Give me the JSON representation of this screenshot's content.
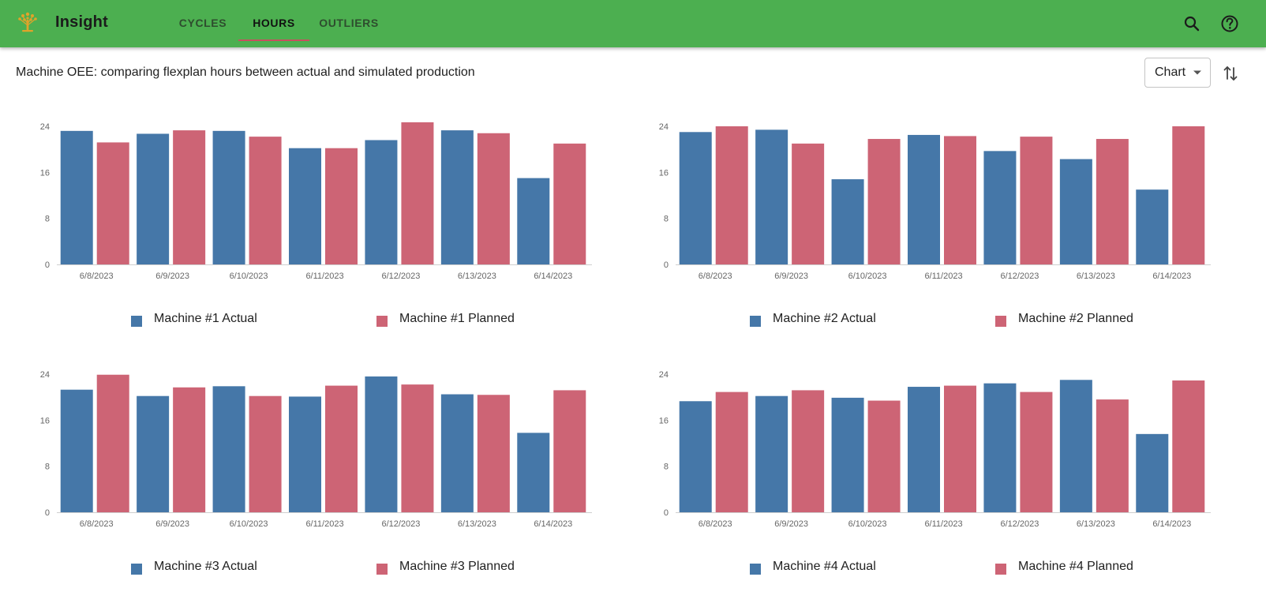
{
  "app": {
    "title": "Insight"
  },
  "nav": {
    "tabs": [
      {
        "label": "CYCLES",
        "active": false
      },
      {
        "label": "HOURS",
        "active": true
      },
      {
        "label": "OUTLIERS",
        "active": false
      }
    ]
  },
  "header_icons": [
    "search-icon",
    "help-icon"
  ],
  "page": {
    "subtitle": "Machine OEE: comparing flexplan hours between actual and simulated production",
    "view_select": {
      "value": "Chart"
    }
  },
  "colors": {
    "appbar": "#4caf50",
    "actual": "#4577a8",
    "planned": "#cd6475",
    "tab_indicator": "#c9505f"
  },
  "chart_data": [
    {
      "type": "bar",
      "title": "",
      "categories": [
        "6/8/2023",
        "6/9/2023",
        "6/10/2023",
        "6/11/2023",
        "6/12/2023",
        "6/13/2023",
        "6/14/2023"
      ],
      "yticks": [
        "0",
        "8",
        "16",
        "24"
      ],
      "ylim": [
        0,
        24
      ],
      "series": [
        {
          "name": "Machine #1 Actual",
          "values": [
            23.2,
            22.7,
            23.2,
            20.2,
            21.6,
            23.3,
            15.0
          ]
        },
        {
          "name": "Machine #1 Planned",
          "values": [
            21.2,
            23.3,
            22.2,
            20.2,
            24.7,
            22.8,
            21.0
          ]
        }
      ]
    },
    {
      "type": "bar",
      "title": "",
      "categories": [
        "6/8/2023",
        "6/9/2023",
        "6/10/2023",
        "6/11/2023",
        "6/12/2023",
        "6/13/2023",
        "6/14/2023"
      ],
      "yticks": [
        "0",
        "8",
        "16",
        "24"
      ],
      "ylim": [
        0,
        24
      ],
      "series": [
        {
          "name": "Machine #2 Actual",
          "values": [
            23.0,
            23.4,
            14.8,
            22.5,
            19.7,
            18.3,
            13.0
          ]
        },
        {
          "name": "Machine #2 Planned",
          "values": [
            24.0,
            21.0,
            21.8,
            22.3,
            22.2,
            21.8,
            24.0
          ]
        }
      ]
    },
    {
      "type": "bar",
      "title": "",
      "categories": [
        "6/8/2023",
        "6/9/2023",
        "6/10/2023",
        "6/11/2023",
        "6/12/2023",
        "6/13/2023",
        "6/14/2023"
      ],
      "yticks": [
        "0",
        "8",
        "16",
        "24"
      ],
      "ylim": [
        0,
        24
      ],
      "series": [
        {
          "name": "Machine #3 Actual",
          "values": [
            21.3,
            20.2,
            21.9,
            20.1,
            23.6,
            20.5,
            13.8
          ]
        },
        {
          "name": "Machine #3 Planned",
          "values": [
            23.9,
            21.7,
            20.2,
            22.0,
            22.2,
            20.4,
            21.2
          ]
        }
      ]
    },
    {
      "type": "bar",
      "title": "",
      "categories": [
        "6/8/2023",
        "6/9/2023",
        "6/10/2023",
        "6/11/2023",
        "6/12/2023",
        "6/13/2023",
        "6/14/2023"
      ],
      "yticks": [
        "0",
        "8",
        "16",
        "24"
      ],
      "ylim": [
        0,
        24
      ],
      "series": [
        {
          "name": "Machine #4 Actual",
          "values": [
            19.3,
            20.2,
            19.9,
            21.8,
            22.4,
            23.0,
            13.6
          ]
        },
        {
          "name": "Machine #4 Planned",
          "values": [
            20.9,
            21.2,
            19.4,
            22.0,
            20.9,
            19.6,
            22.9
          ]
        }
      ]
    }
  ]
}
